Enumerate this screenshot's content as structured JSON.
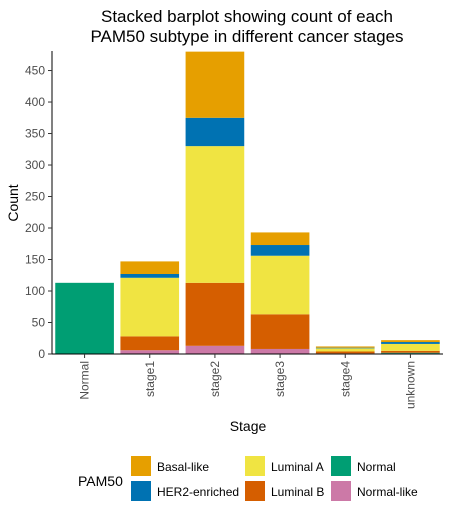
{
  "chart_data": {
    "type": "bar",
    "stacked": true,
    "title": "Stacked barplot showing count of each\nPAM50 subtype in different cancer stages",
    "xlabel": "Stage",
    "ylabel": "Count",
    "ylim": [
      0,
      481
    ],
    "yticks": [
      0,
      50,
      100,
      150,
      200,
      250,
      300,
      350,
      400,
      450
    ],
    "grid": false,
    "legend_position": "bottom",
    "legend_title": "PAM50",
    "categories": [
      "Normal",
      "stage1",
      "stage2",
      "stage3",
      "stage4",
      "unknown"
    ],
    "series": [
      {
        "name": "Basal-like",
        "color": "#E69F00",
        "values": [
          0,
          20,
          105,
          20,
          2,
          3
        ]
      },
      {
        "name": "HER2-enriched",
        "color": "#0072B2",
        "values": [
          0,
          6,
          45,
          17,
          1,
          3
        ]
      },
      {
        "name": "Luminal A",
        "color": "#F0E442",
        "values": [
          0,
          93,
          217,
          93,
          5,
          11
        ]
      },
      {
        "name": "Luminal B",
        "color": "#D55E00",
        "values": [
          0,
          22,
          100,
          55,
          3,
          3
        ]
      },
      {
        "name": "Normal",
        "color": "#009E73",
        "values": [
          113,
          0,
          0,
          0,
          0,
          1
        ]
      },
      {
        "name": "Normal-like",
        "color": "#CC79A7",
        "values": [
          0,
          6,
          13,
          8,
          1,
          1
        ]
      }
    ]
  }
}
